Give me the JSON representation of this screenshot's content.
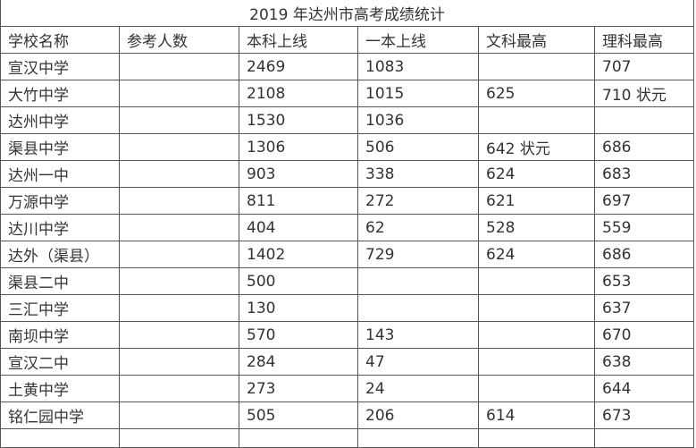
{
  "title": "2019 年达州市高考成绩统计",
  "headers": [
    "学校名称",
    "参考人数",
    "本科上线",
    "一本上线",
    "文科最高",
    "理科最高"
  ],
  "rows": [
    [
      "宣汉中学",
      "",
      "2469",
      "1083",
      "",
      "707"
    ],
    [
      "大竹中学",
      "",
      "2108",
      "1015",
      "625",
      "710 状元"
    ],
    [
      "达州中学",
      "",
      "1530",
      "1036",
      "",
      ""
    ],
    [
      "渠县中学",
      "",
      "1306",
      "506",
      "642 状元",
      "686"
    ],
    [
      "达州一中",
      "",
      "903",
      "338",
      "624",
      "683"
    ],
    [
      "万源中学",
      "",
      "811",
      "272",
      "621",
      "697"
    ],
    [
      "达川中学",
      "",
      "404",
      "62",
      "528",
      "559"
    ],
    [
      "达外（渠县）",
      "",
      "1402",
      "729",
      "624",
      "686"
    ],
    [
      "渠县二中",
      "",
      "500",
      "",
      "",
      "653"
    ],
    [
      "三汇中学",
      "",
      "130",
      "",
      "",
      "637"
    ],
    [
      "南坝中学",
      "",
      "570",
      "143",
      "",
      "670"
    ],
    [
      "宣汉二中",
      "",
      "284",
      "47",
      "",
      "638"
    ],
    [
      "土黄中学",
      "",
      "273",
      "24",
      "",
      "644"
    ],
    [
      "铭仁园中学",
      "",
      "505",
      "206",
      "614",
      "673"
    ]
  ]
}
